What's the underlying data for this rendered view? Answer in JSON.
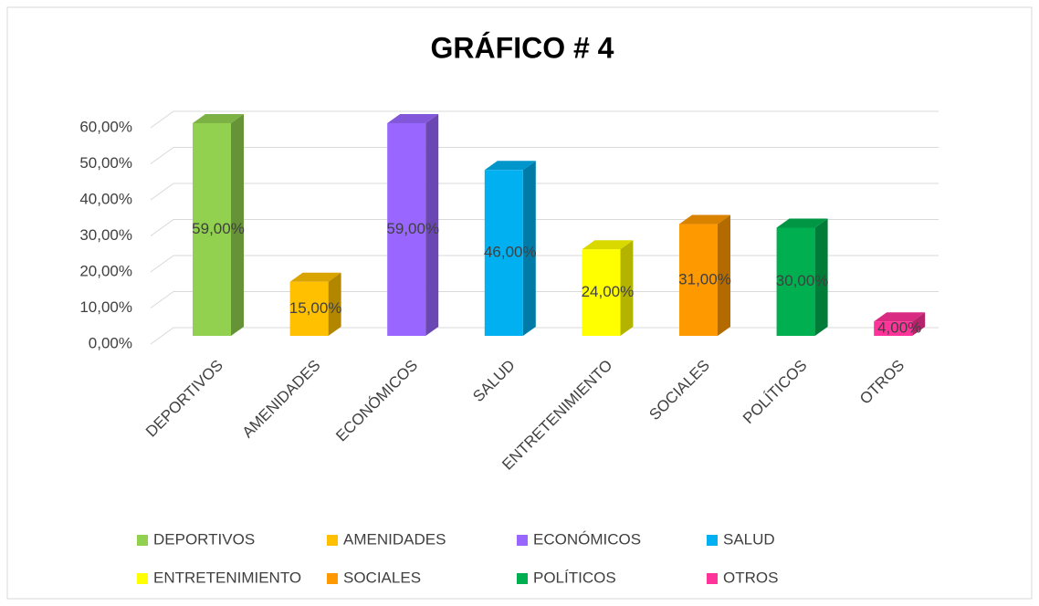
{
  "chart_data": {
    "type": "bar3d",
    "title": "GRÁFICO # 4",
    "categories": [
      "DEPORTIVOS",
      "AMENIDADES",
      "ECONÓMICOS",
      "SALUD",
      "ENTRETENIMIENTO",
      "SOCIALES",
      "POLÍTICOS",
      "OTROS"
    ],
    "values": [
      59,
      15,
      59,
      46,
      24,
      31,
      30,
      4
    ],
    "value_labels": [
      "59,00%",
      "15,00%",
      "59,00%",
      "46,00%",
      "24,00%",
      "31,00%",
      "30,00%",
      "4,00%"
    ],
    "colors": [
      "#92d050",
      "#ffc000",
      "#9966ff",
      "#00b0f0",
      "#ffff00",
      "#ff9900",
      "#00b050",
      "#ff3399"
    ],
    "ylim": [
      0,
      60
    ],
    "yticks": [
      {
        "value": 0,
        "label": "0,00%"
      },
      {
        "value": 10,
        "label": "10,00%"
      },
      {
        "value": 20,
        "label": "20,00%"
      },
      {
        "value": 30,
        "label": "30,00%"
      },
      {
        "value": 40,
        "label": "40,00%"
      },
      {
        "value": 50,
        "label": "50,00%"
      },
      {
        "value": 60,
        "label": "60,00%"
      }
    ],
    "grid": true,
    "legend": "bottom"
  }
}
